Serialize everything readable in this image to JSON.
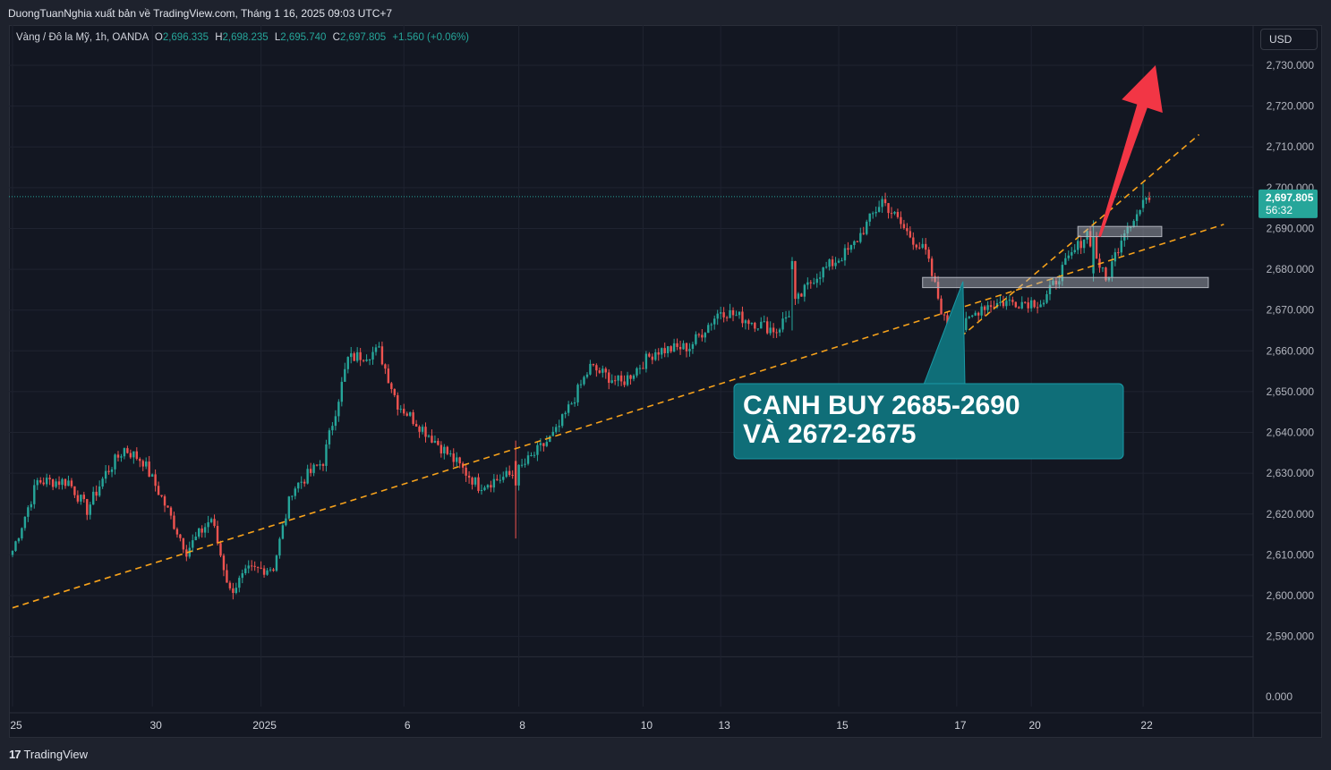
{
  "header": {
    "publish_line": "DuongTuanNghia xuất bản về TradingView.com, Tháng 1 16, 2025 09:03 UTC+7"
  },
  "legend": {
    "symbol": "Vàng / Đô la Mỹ, 1h, OANDA",
    "o_label": "O",
    "o_value": "2,696.335",
    "h_label": "H",
    "h_value": "2,698.235",
    "l_label": "L",
    "l_value": "2,695.740",
    "c_label": "C",
    "c_value": "2,697.805",
    "change": "+1.560 (+0.06%)"
  },
  "currency_button": "USD",
  "price_badge": {
    "price": "2,697.805",
    "countdown": "56:32"
  },
  "annotation": {
    "line1": "CANH BUY 2685-2690",
    "line2": "VÀ 2672-2675"
  },
  "footer": {
    "brand": "TradingView"
  },
  "colors": {
    "up": "#26a69a",
    "down": "#ef5350",
    "background": "#131722",
    "trendline": "#f7a21b",
    "callout": "#0f6e78",
    "arrow": "#f23645",
    "zone": "#b2b5be"
  },
  "chart_data": {
    "type": "candlestick",
    "title": "",
    "y_axis": {
      "range": [
        2583,
        2735
      ],
      "ticks": [
        "2,730.000",
        "2,720.000",
        "2,710.000",
        "2,700.000",
        "2,690.000",
        "2,680.000",
        "2,670.000",
        "2,660.000",
        "2,650.000",
        "2,640.000",
        "2,630.000",
        "2,620.000",
        "2,610.000",
        "2,600.000",
        "2,590.000"
      ],
      "tick_values": [
        2730,
        2720,
        2710,
        2700,
        2690,
        2680,
        2670,
        2660,
        2650,
        2640,
        2630,
        2620,
        2610,
        2600,
        2590
      ],
      "extra_tick": "0.000"
    },
    "x_axis": {
      "tick_labels": [
        "25",
        "30",
        "2025",
        "6",
        "8",
        "10",
        "13",
        "15",
        "17",
        "20",
        "22"
      ],
      "tick_index": [
        0,
        45,
        80,
        126,
        163,
        203,
        228,
        266,
        304,
        328,
        364
      ]
    },
    "grid": true,
    "last_price": 2697.805,
    "close_path_anchors": [
      [
        0,
        2611
      ],
      [
        8,
        2628
      ],
      [
        18,
        2628
      ],
      [
        24,
        2621
      ],
      [
        30,
        2630
      ],
      [
        36,
        2636
      ],
      [
        42,
        2633
      ],
      [
        48,
        2624
      ],
      [
        56,
        2611
      ],
      [
        64,
        2619
      ],
      [
        70,
        2601
      ],
      [
        76,
        2606
      ],
      [
        84,
        2607
      ],
      [
        90,
        2626
      ],
      [
        100,
        2633
      ],
      [
        108,
        2658
      ],
      [
        118,
        2660
      ],
      [
        124,
        2647
      ],
      [
        136,
        2638
      ],
      [
        150,
        2627
      ],
      [
        162,
        2630
      ],
      [
        175,
        2640
      ],
      [
        186,
        2656
      ],
      [
        196,
        2652
      ],
      [
        207,
        2660
      ],
      [
        218,
        2661
      ],
      [
        228,
        2670
      ],
      [
        246,
        2665
      ],
      [
        258,
        2678
      ],
      [
        270,
        2685
      ],
      [
        280,
        2697
      ],
      [
        288,
        2689
      ],
      [
        294,
        2684
      ],
      [
        302,
        2662
      ],
      [
        312,
        2671
      ],
      [
        320,
        2672
      ],
      [
        332,
        2672
      ],
      [
        338,
        2680
      ],
      [
        346,
        2689
      ],
      [
        352,
        2677
      ],
      [
        358,
        2690
      ],
      [
        366,
        2697
      ]
    ],
    "shock_candles": [
      {
        "index": 162,
        "open": 2633,
        "high": 2638,
        "low": 2614,
        "close": 2627
      },
      {
        "index": 251,
        "open": 2680,
        "high": 2683,
        "low": 2665,
        "close": 2682
      },
      {
        "index": 348,
        "open": 2679,
        "high": 2692,
        "low": 2677,
        "close": 2688
      },
      {
        "index": 364,
        "open": 2695,
        "high": 2701,
        "low": 2694,
        "close": 2697
      }
    ],
    "trendlines": [
      {
        "style": "dashed",
        "from": {
          "x": 0,
          "y": 2597
        },
        "to": {
          "x": 390,
          "y": 2691
        }
      },
      {
        "style": "dashed",
        "from": {
          "x": 300,
          "y": 2660
        },
        "to": {
          "x": 382,
          "y": 2713
        }
      }
    ],
    "zones": [
      {
        "label": "2685-2690",
        "y_low": 2688,
        "y_high": 2690.5,
        "x_from": 343,
        "x_to": 370
      },
      {
        "label": "2672-2675",
        "y_low": 2675.5,
        "y_high": 2678,
        "x_from": 293,
        "x_to": 385
      }
    ],
    "arrow": {
      "from": {
        "x": 350,
        "y": 2688
      },
      "to": {
        "x": 368,
        "y": 2730
      }
    }
  }
}
